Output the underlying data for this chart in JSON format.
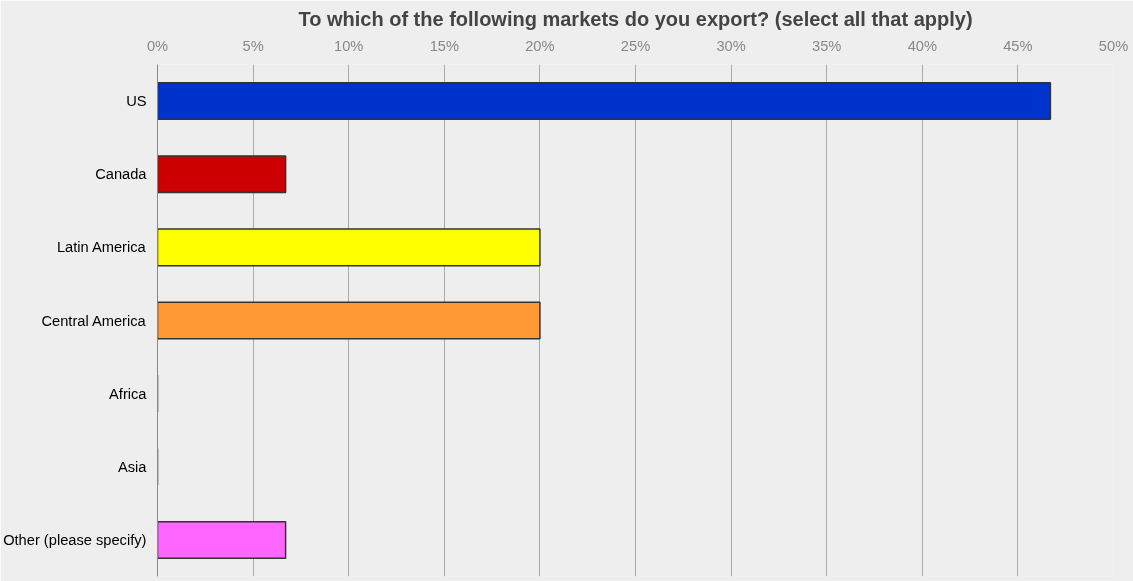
{
  "chart_data": {
    "type": "bar",
    "orientation": "horizontal",
    "title": "To which of the following markets do you export? (select all that apply)",
    "categories": [
      "US",
      "Canada",
      "Latin America",
      "Central America",
      "Africa",
      "Asia",
      "Other (please specify)"
    ],
    "values": [
      46.7,
      6.7,
      20,
      20,
      0,
      0,
      6.7
    ],
    "colors": [
      "#0033cc",
      "#cc0000",
      "#ffff00",
      "#ff9933",
      "#333333",
      "#333333",
      "#ff66ff"
    ],
    "xlim": [
      0,
      50
    ],
    "xticks": [
      {
        "value": 0,
        "label": "0%"
      },
      {
        "value": 5,
        "label": "5%"
      },
      {
        "value": 10,
        "label": "10%"
      },
      {
        "value": 15,
        "label": "15%"
      },
      {
        "value": 20,
        "label": "20%"
      },
      {
        "value": 25,
        "label": "25%"
      },
      {
        "value": 30,
        "label": "30%"
      },
      {
        "value": 35,
        "label": "35%"
      },
      {
        "value": 40,
        "label": "40%"
      },
      {
        "value": 45,
        "label": "45%"
      },
      {
        "value": 50,
        "label": "50%"
      }
    ],
    "grid": "x"
  }
}
